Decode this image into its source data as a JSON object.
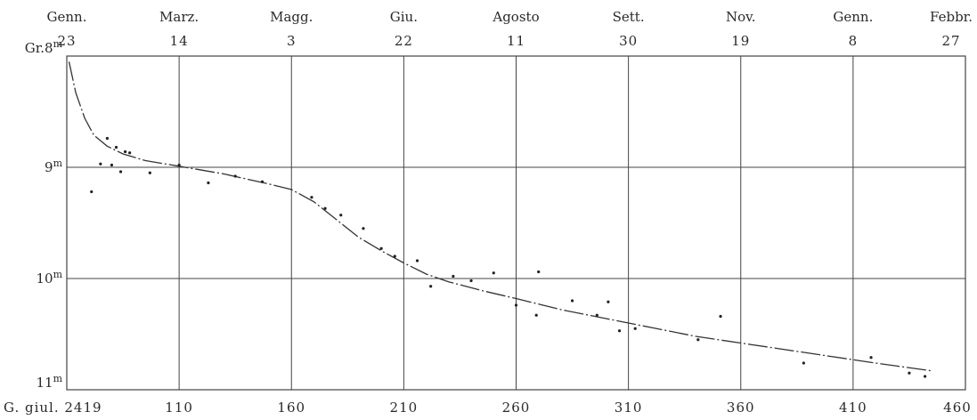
{
  "chart_data": {
    "type": "scatter",
    "x_axis_bottom": {
      "prefix_label": "G. giul. 2419",
      "ticks": [
        60,
        110,
        160,
        210,
        260,
        310,
        360,
        410,
        460
      ],
      "tick_labels": [
        "110",
        "160",
        "210",
        "260",
        "310",
        "360",
        "410",
        "460"
      ]
    },
    "x_axis_top": {
      "ticks": [
        {
          "x": 60,
          "month": "Genn.",
          "day": "23"
        },
        {
          "x": 110,
          "month": "Marz.",
          "day": "14"
        },
        {
          "x": 160,
          "month": "Magg.",
          "day": "3"
        },
        {
          "x": 210,
          "month": "Giu.",
          "day": "22"
        },
        {
          "x": 260,
          "month": "Agosto",
          "day": "11"
        },
        {
          "x": 310,
          "month": "Sett.",
          "day": "30"
        },
        {
          "x": 360,
          "month": "Nov.",
          "day": "19"
        },
        {
          "x": 410,
          "month": "Genn.",
          "day": "8"
        },
        {
          "x": 460,
          "month": "Febbr.",
          "day": "27"
        }
      ]
    },
    "y_axis": {
      "inverted": true,
      "range": [
        8.0,
        11.0
      ],
      "ticks": [
        {
          "value": 8.0,
          "prefix": "Gr.",
          "num": "8",
          "sup": "m"
        },
        {
          "value": 9.0,
          "prefix": "",
          "num": "9",
          "sup": "m"
        },
        {
          "value": 10.0,
          "prefix": "",
          "num": "10",
          "sup": "m"
        },
        {
          "value": 11.0,
          "prefix": "",
          "num": "11",
          "sup": "m"
        }
      ]
    },
    "xlim": [
      60,
      460
    ],
    "ylim": [
      8.0,
      11.0
    ],
    "grid": true,
    "points": [
      {
        "x": 71,
        "y": 9.22
      },
      {
        "x": 75,
        "y": 8.97
      },
      {
        "x": 78,
        "y": 8.74
      },
      {
        "x": 80,
        "y": 8.98
      },
      {
        "x": 82,
        "y": 8.82
      },
      {
        "x": 84,
        "y": 9.04
      },
      {
        "x": 86,
        "y": 8.86
      },
      {
        "x": 88,
        "y": 8.87
      },
      {
        "x": 97,
        "y": 9.05
      },
      {
        "x": 110,
        "y": 8.98
      },
      {
        "x": 123,
        "y": 9.14
      },
      {
        "x": 135,
        "y": 9.08
      },
      {
        "x": 147,
        "y": 9.13
      },
      {
        "x": 169,
        "y": 9.27
      },
      {
        "x": 175,
        "y": 9.37
      },
      {
        "x": 182,
        "y": 9.43
      },
      {
        "x": 192,
        "y": 9.55
      },
      {
        "x": 200,
        "y": 9.73
      },
      {
        "x": 206,
        "y": 9.8
      },
      {
        "x": 216,
        "y": 9.84
      },
      {
        "x": 222,
        "y": 10.07
      },
      {
        "x": 232,
        "y": 9.98
      },
      {
        "x": 240,
        "y": 10.02
      },
      {
        "x": 250,
        "y": 9.95
      },
      {
        "x": 260,
        "y": 10.24
      },
      {
        "x": 269,
        "y": 10.33
      },
      {
        "x": 270,
        "y": 9.94
      },
      {
        "x": 285,
        "y": 10.2
      },
      {
        "x": 296,
        "y": 10.33
      },
      {
        "x": 301,
        "y": 10.21
      },
      {
        "x": 306,
        "y": 10.47
      },
      {
        "x": 313,
        "y": 10.45
      },
      {
        "x": 341,
        "y": 10.55
      },
      {
        "x": 351,
        "y": 10.34
      },
      {
        "x": 388,
        "y": 10.76
      },
      {
        "x": 418,
        "y": 10.71
      },
      {
        "x": 435,
        "y": 10.85
      },
      {
        "x": 442,
        "y": 10.88
      }
    ],
    "curve": [
      {
        "x": 61,
        "y": 8.05
      },
      {
        "x": 64,
        "y": 8.33
      },
      {
        "x": 68,
        "y": 8.56
      },
      {
        "x": 72,
        "y": 8.71
      },
      {
        "x": 78,
        "y": 8.81
      },
      {
        "x": 85,
        "y": 8.88
      },
      {
        "x": 95,
        "y": 8.94
      },
      {
        "x": 110,
        "y": 8.99
      },
      {
        "x": 130,
        "y": 9.06
      },
      {
        "x": 150,
        "y": 9.15
      },
      {
        "x": 160,
        "y": 9.2
      },
      {
        "x": 170,
        "y": 9.31
      },
      {
        "x": 180,
        "y": 9.47
      },
      {
        "x": 190,
        "y": 9.63
      },
      {
        "x": 200,
        "y": 9.75
      },
      {
        "x": 210,
        "y": 9.86
      },
      {
        "x": 220,
        "y": 9.96
      },
      {
        "x": 230,
        "y": 10.03
      },
      {
        "x": 245,
        "y": 10.11
      },
      {
        "x": 260,
        "y": 10.18
      },
      {
        "x": 280,
        "y": 10.28
      },
      {
        "x": 300,
        "y": 10.36
      },
      {
        "x": 320,
        "y": 10.44
      },
      {
        "x": 340,
        "y": 10.52
      },
      {
        "x": 360,
        "y": 10.58
      },
      {
        "x": 380,
        "y": 10.64
      },
      {
        "x": 400,
        "y": 10.7
      },
      {
        "x": 420,
        "y": 10.76
      },
      {
        "x": 445,
        "y": 10.83
      }
    ]
  },
  "colors": {
    "background": "#ffffff",
    "ink": "#2a2a2a",
    "grid": "#444444"
  }
}
